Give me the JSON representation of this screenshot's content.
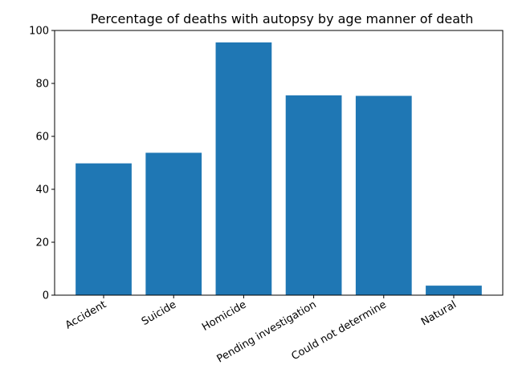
{
  "chart_data": {
    "type": "bar",
    "title": "Percentage of deaths with autopsy by age manner of death",
    "xlabel": "",
    "ylabel": "",
    "categories": [
      "Accident",
      "Suicide",
      "Homicide",
      "Pending investigation",
      "Could not determine",
      "Natural"
    ],
    "values": [
      49.8,
      53.8,
      95.5,
      75.5,
      75.3,
      3.6
    ],
    "ylim": [
      0,
      100
    ],
    "yticks": [
      0,
      20,
      40,
      60,
      80,
      100
    ],
    "grid": false,
    "legend": "none",
    "bar_color": "#1f77b4"
  }
}
